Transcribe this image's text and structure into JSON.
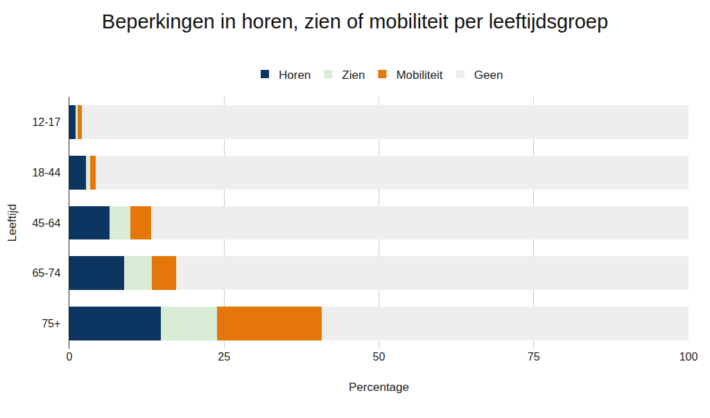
{
  "chart_data": {
    "type": "bar",
    "title": "Beperkingen in horen, zien of mobiliteit per leeftijdsgroep",
    "x_label": "Percentage",
    "y_label": "Leeftijd",
    "orientation": "horizontal",
    "stacked": true,
    "categories": [
      "12-17",
      "18-44",
      "45-64",
      "65-74",
      "75+"
    ],
    "series": [
      {
        "name": "Horen",
        "color": "#0b3560",
        "values": [
          1.0,
          2.7,
          6.5,
          8.8,
          14.8
        ]
      },
      {
        "name": "Zien",
        "color": "#d9ecd5",
        "values": [
          0.3,
          0.7,
          3.3,
          4.5,
          9.1
        ]
      },
      {
        "name": "Mobiliteit",
        "color": "#e5760a",
        "values": [
          0.7,
          0.8,
          3.4,
          4.0,
          16.9
        ]
      },
      {
        "name": "Geen",
        "color": "#eeeeee",
        "values": [
          98.0,
          95.8,
          86.8,
          82.7,
          59.2
        ]
      }
    ],
    "xlim": [
      0,
      100
    ],
    "xticks": [
      0,
      25,
      50,
      75,
      100
    ],
    "grid": true,
    "legend": "top"
  }
}
